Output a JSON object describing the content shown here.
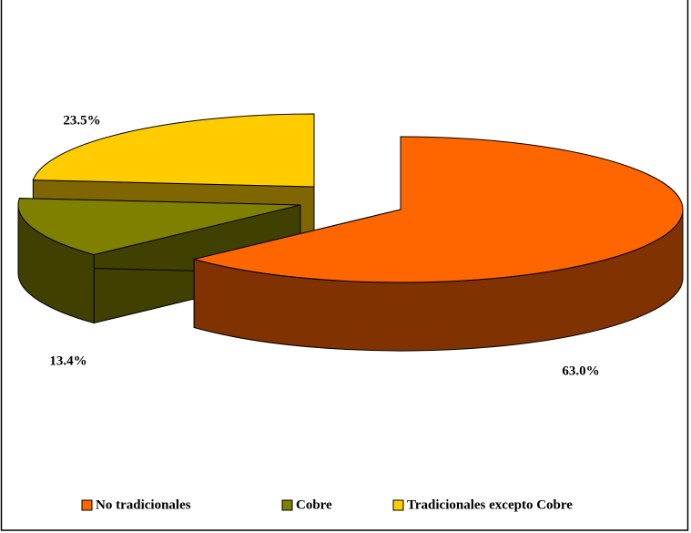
{
  "chart_data": {
    "type": "pie",
    "three_d": true,
    "categories": [
      "No tradicionales",
      "Cobre",
      "Tradicionales excepto Cobre"
    ],
    "values": [
      63.0,
      13.4,
      23.5
    ],
    "value_labels": [
      "63.0%",
      "13.4%",
      "23.5%"
    ],
    "colors": [
      "#ff6600",
      "#808000",
      "#ffcc00"
    ],
    "legend": "bottom"
  }
}
